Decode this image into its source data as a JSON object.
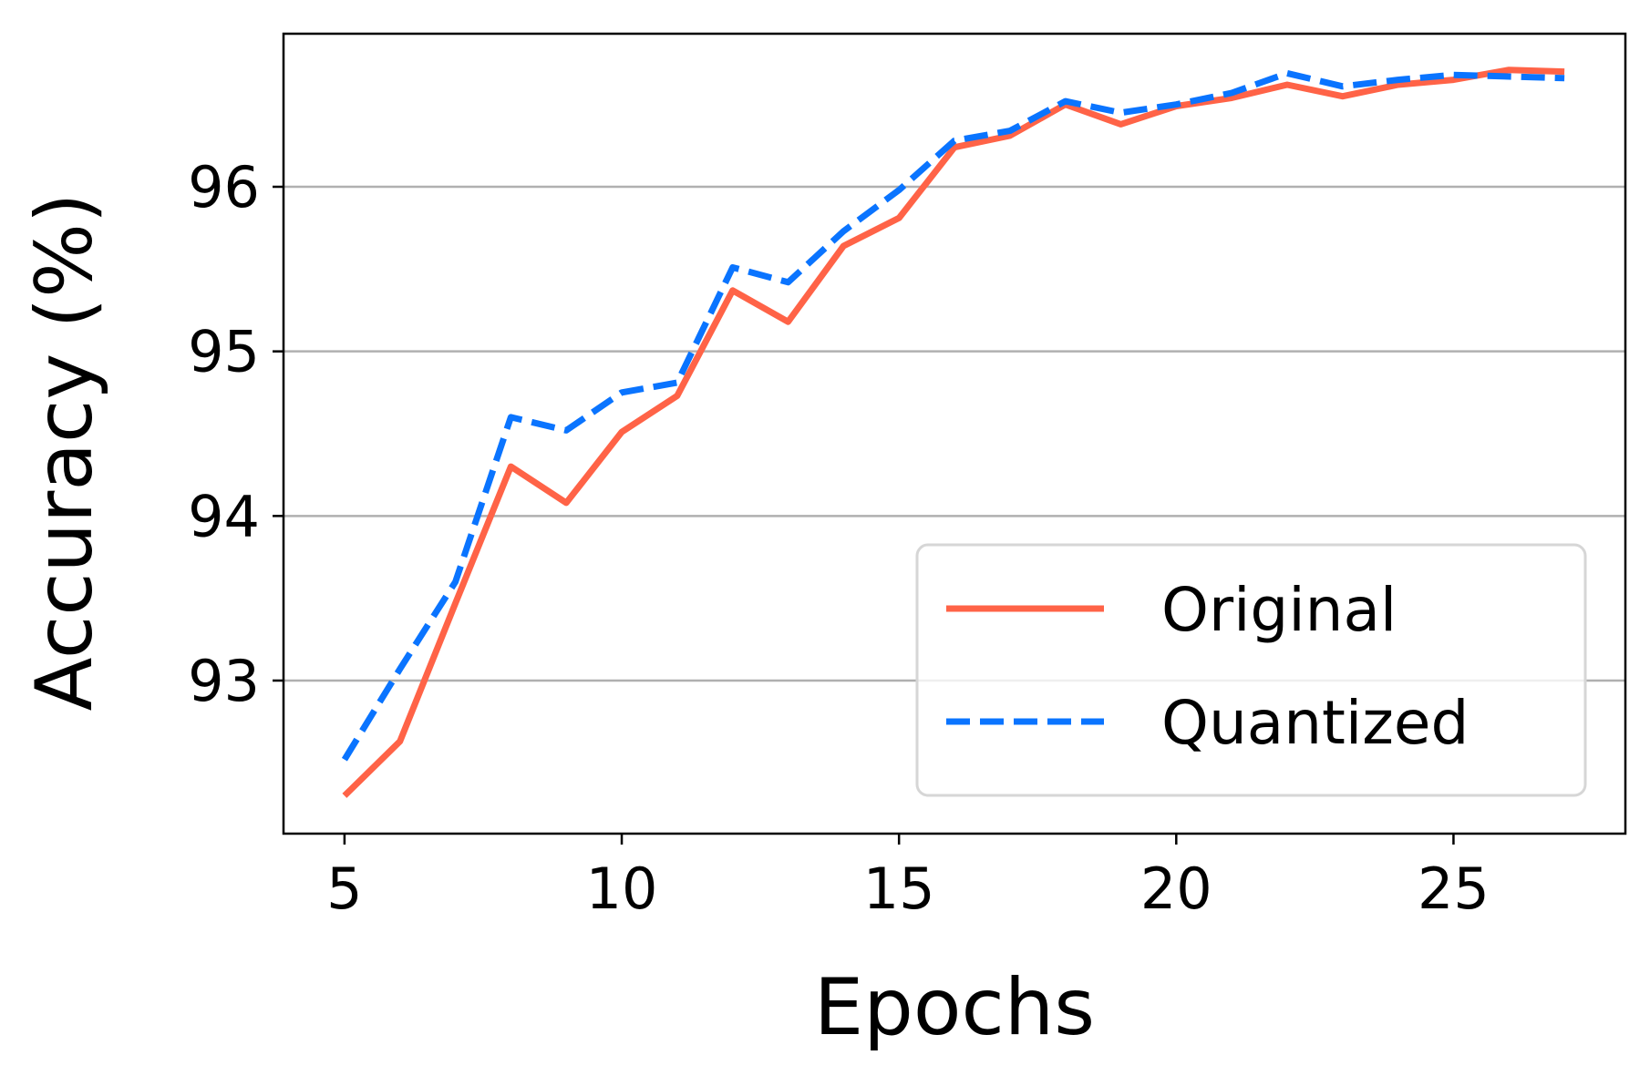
{
  "chart_data": {
    "type": "line",
    "title": "",
    "xlabel": "Epochs",
    "ylabel": "Accuracy (%)",
    "xlim": [
      3.9,
      28.1
    ],
    "ylim": [
      92.07,
      96.93
    ],
    "xticks": [
      5,
      10,
      15,
      20,
      25
    ],
    "yticks": [
      93,
      94,
      95,
      96
    ],
    "grid": {
      "y": true,
      "x": false
    },
    "legend_position": "lower-right",
    "x": [
      5,
      6,
      7,
      8,
      9,
      10,
      11,
      12,
      13,
      14,
      15,
      16,
      17,
      18,
      19,
      20,
      21,
      22,
      23,
      24,
      25,
      26,
      27
    ],
    "series": [
      {
        "name": "Original",
        "style": "solid",
        "color": "#FF6347",
        "values": [
          92.3,
          92.63,
          93.47,
          94.3,
          94.08,
          94.51,
          94.73,
          95.37,
          95.18,
          95.64,
          95.81,
          96.24,
          96.31,
          96.5,
          96.38,
          96.49,
          96.54,
          96.62,
          96.55,
          96.62,
          96.65,
          96.71,
          96.7
        ]
      },
      {
        "name": "Quantized",
        "style": "dashed",
        "color": "#0A74FF",
        "values": [
          92.52,
          93.07,
          93.6,
          94.6,
          94.52,
          94.75,
          94.81,
          95.51,
          95.42,
          95.73,
          95.98,
          96.28,
          96.34,
          96.52,
          96.45,
          96.5,
          96.57,
          96.69,
          96.61,
          96.65,
          96.68,
          96.67,
          96.66
        ]
      }
    ]
  }
}
